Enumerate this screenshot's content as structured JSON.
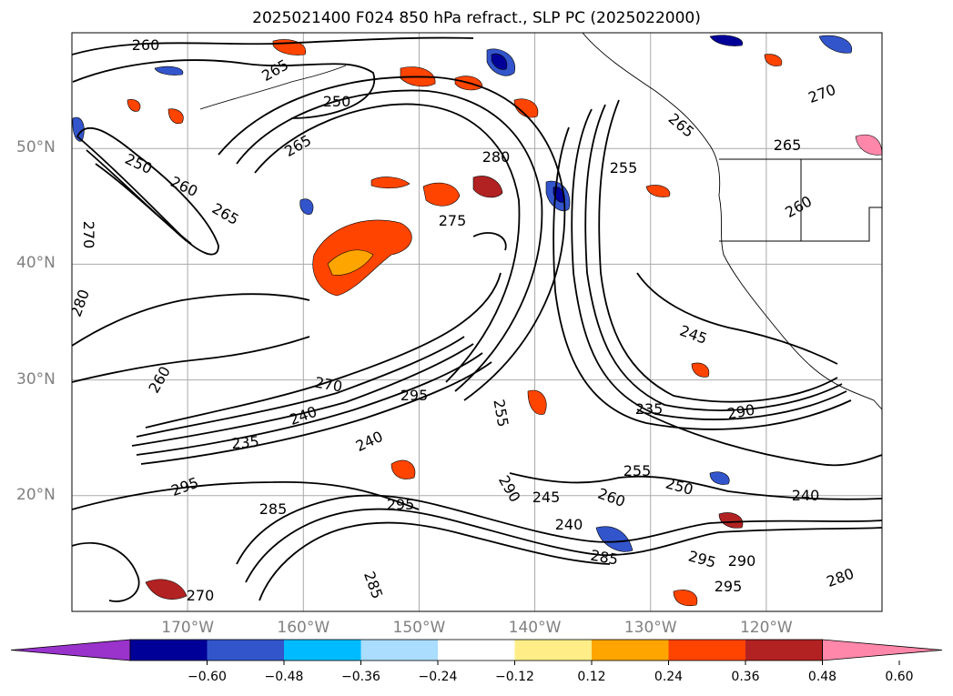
{
  "title": "2025021400 F024 850 hPa refract., SLP PC (2025022000)",
  "map": {
    "lat_labels": [
      {
        "text": "50°N",
        "lat": 50
      },
      {
        "text": "40°N",
        "lat": 40
      },
      {
        "text": "30°N",
        "lat": 30
      },
      {
        "text": "20°N",
        "lat": 20
      }
    ],
    "lon_labels": [
      {
        "text": "170°W",
        "lon": -170
      },
      {
        "text": "160°W",
        "lon": -160
      },
      {
        "text": "150°W",
        "lon": -150
      },
      {
        "text": "140°W",
        "lon": -140
      },
      {
        "text": "130°W",
        "lon": -130
      },
      {
        "text": "120°W",
        "lon": -120
      }
    ],
    "extent": {
      "lon_min": -180,
      "lon_max": -110,
      "lat_min": 10,
      "lat_max": 60
    },
    "contour_labels": [
      "260",
      "265",
      "250",
      "265",
      "280",
      "255",
      "265",
      "270",
      "250",
      "260",
      "265",
      "275",
      "265",
      "260",
      "270",
      "295",
      "240",
      "235",
      "245",
      "235",
      "290",
      "240",
      "255",
      "250",
      "240",
      "295",
      "285",
      "255",
      "245",
      "295",
      "260",
      "240",
      "285",
      "295",
      "290",
      "280",
      "295",
      "270",
      "280",
      "285",
      "290",
      "260",
      "270"
    ]
  },
  "colorbar": {
    "ticks": [
      "−0.60",
      "−0.48",
      "−0.36",
      "−0.24",
      "−0.12",
      "0.12",
      "0.24",
      "0.36",
      "0.48",
      "0.60"
    ],
    "colors": [
      "#9933cc",
      "#000099",
      "#3355cc",
      "#00bbff",
      "#aaddff",
      "#ffffff",
      "#ffee88",
      "#ffa500",
      "#ff4400",
      "#b22222",
      "#ff88aa"
    ]
  }
}
